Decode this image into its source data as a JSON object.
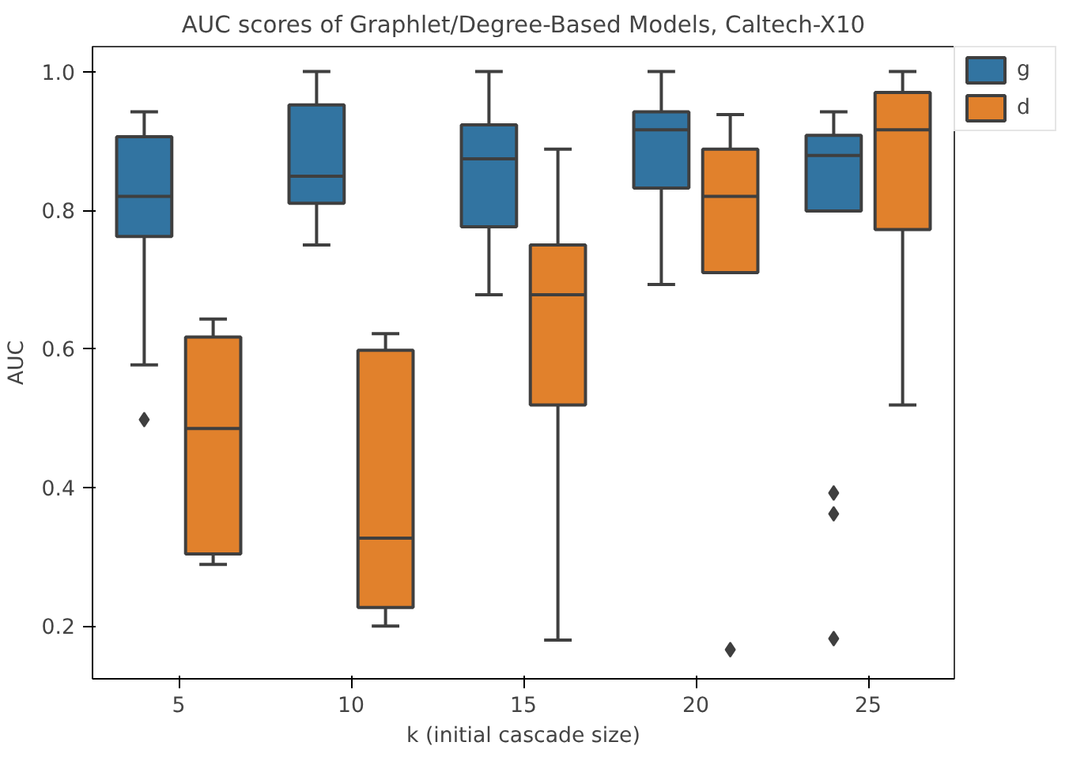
{
  "chart_data": {
    "type": "box",
    "title": "AUC scores of Graphlet/Degree-Based Models, Caltech-X10",
    "xlabel": "k (initial cascade size)",
    "ylabel": "AUC",
    "categories": [
      "5",
      "10",
      "15",
      "20",
      "25"
    ],
    "ylim": [
      0.124,
      1.036
    ],
    "yticks": [
      0.2,
      0.4,
      0.6,
      0.8,
      {
        "value": 1.0,
        "label": "1.0"
      }
    ],
    "grid": false,
    "legend": "top right",
    "series": [
      {
        "name": "g",
        "color": "#3274a1",
        "boxes": [
          {
            "low": 0.577,
            "q1": 0.762,
            "median": 0.82,
            "q3": 0.906,
            "high": 0.942,
            "outliers": [
              0.498
            ]
          },
          {
            "low": 0.75,
            "q1": 0.81,
            "median": 0.849,
            "q3": 0.952,
            "high": 1.0
          },
          {
            "low": 0.678,
            "q1": 0.776,
            "median": 0.874,
            "q3": 0.923,
            "high": 1.0
          },
          {
            "low": 0.693,
            "q1": 0.832,
            "median": 0.916,
            "q3": 0.942,
            "high": 1.0
          },
          {
            "low": 0.799,
            "q1": 0.799,
            "median": 0.879,
            "q3": 0.908,
            "high": 0.942,
            "outliers": [
              0.392,
              0.362,
              0.182
            ]
          }
        ]
      },
      {
        "name": "d",
        "color": "#e1812c",
        "boxes": [
          {
            "low": 0.289,
            "q1": 0.304,
            "median": 0.485,
            "q3": 0.617,
            "high": 0.643
          },
          {
            "low": 0.2,
            "q1": 0.227,
            "median": 0.327,
            "q3": 0.598,
            "high": 0.622
          },
          {
            "low": 0.18,
            "q1": 0.519,
            "median": 0.678,
            "q3": 0.75,
            "high": 0.888
          },
          {
            "low": 0.71,
            "q1": 0.71,
            "median": 0.82,
            "q3": 0.888,
            "high": 0.938,
            "outliers": [
              0.166
            ]
          },
          {
            "low": 0.519,
            "q1": 0.772,
            "median": 0.916,
            "q3": 0.97,
            "high": 1.0
          }
        ]
      }
    ]
  }
}
